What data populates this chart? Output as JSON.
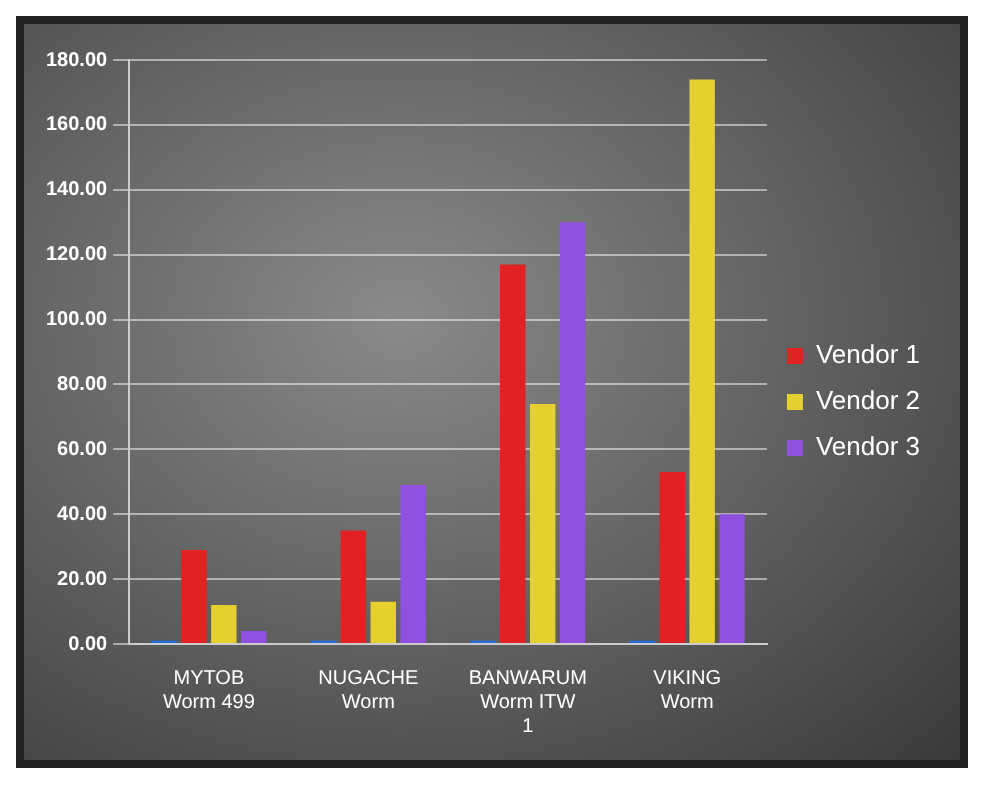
{
  "chart_data": {
    "type": "bar",
    "categories": [
      "MYTOB Worm 499",
      "NUGACHE Worm",
      "BANWARUM Worm ITW 1",
      "VIKING Worm"
    ],
    "series": [
      {
        "color": "#1f6fe0",
        "values": [
          1,
          1,
          1,
          1
        ]
      },
      {
        "name": "Vendor 1",
        "color": "#e02222",
        "values": [
          29,
          35,
          117,
          53
        ]
      },
      {
        "name": "Vendor 2",
        "color": "#e6d030",
        "values": [
          12,
          13,
          74,
          174
        ]
      },
      {
        "name": "Vendor 3",
        "color": "#9050e0",
        "values": [
          4,
          49,
          130,
          40
        ]
      }
    ],
    "ylim": [
      0,
      180
    ],
    "yticks": [
      {
        "value": 0,
        "label": "0.00"
      },
      {
        "value": 20,
        "label": "20.00"
      },
      {
        "value": 40,
        "label": "40.00"
      },
      {
        "value": 60,
        "label": "60.00"
      },
      {
        "value": 80,
        "label": "80.00"
      },
      {
        "value": 100,
        "label": "100.00"
      },
      {
        "value": 120,
        "label": "120.00"
      },
      {
        "value": 140,
        "label": "140.00"
      },
      {
        "value": 160,
        "label": "160.00"
      },
      {
        "value": 180,
        "label": "180.00"
      }
    ],
    "grid": "y",
    "legend": "right"
  }
}
